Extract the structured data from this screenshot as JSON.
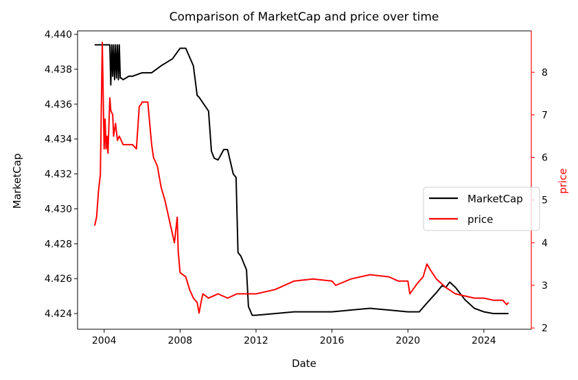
{
  "chart_data": {
    "type": "line",
    "title": "Comparison of MarketCap and price over time",
    "xlabel": "Date",
    "ylabel_left": "MarketCap",
    "ylabel_right": "price",
    "xlim": [
      2002.6,
      2026.5
    ],
    "ylim_left": [
      4.4231,
      4.4402
    ],
    "ylim_right": [
      1.97,
      8.97
    ],
    "x_ticks": [
      2004,
      2008,
      2012,
      2016,
      2020,
      2024
    ],
    "y_left_ticks": [
      "4.424",
      "4.426",
      "4.428",
      "4.430",
      "4.432",
      "4.434",
      "4.436",
      "4.438",
      "4.440"
    ],
    "y_right_ticks": [
      "2",
      "3",
      "4",
      "5",
      "6",
      "7",
      "8"
    ],
    "grid": false,
    "legend_position": "center-right",
    "colors": {
      "marketcap": "#000000",
      "price": "#ff0000",
      "right_axis": "#ff0000"
    },
    "series": [
      {
        "name": "MarketCap",
        "axis": "left",
        "x": [
          2003.5,
          2004.3,
          2004.35,
          2004.4,
          2004.45,
          2004.5,
          2004.55,
          2004.6,
          2004.65,
          2004.7,
          2004.75,
          2004.8,
          2004.85,
          2004.9,
          2005.0,
          2005.3,
          2005.5,
          2006.0,
          2006.5,
          2007.0,
          2007.3,
          2007.6,
          2008.0,
          2008.3,
          2008.7,
          2008.9,
          2009.0,
          2009.5,
          2009.65,
          2009.8,
          2010.0,
          2010.3,
          2010.5,
          2010.8,
          2010.95,
          2011.05,
          2011.2,
          2011.5,
          2011.6,
          2011.8,
          2012.0,
          2013.0,
          2014.0,
          2015.0,
          2016.0,
          2017.0,
          2018.0,
          2019.0,
          2020.0,
          2020.6,
          2021.0,
          2021.5,
          2021.8,
          2022.0,
          2022.2,
          2022.5,
          2023.0,
          2023.5,
          2024.0,
          2024.5,
          2025.0,
          2025.3
        ],
        "values": [
          4.4394,
          4.4394,
          4.4371,
          4.4394,
          4.4376,
          4.4394,
          4.4374,
          4.4394,
          4.4375,
          4.4394,
          4.4374,
          4.4394,
          4.4375,
          4.4375,
          4.4374,
          4.4376,
          4.4376,
          4.4378,
          4.4378,
          4.4382,
          4.4384,
          4.4386,
          4.4392,
          4.4392,
          4.4382,
          4.4365,
          4.4364,
          4.4356,
          4.4333,
          4.4329,
          4.4328,
          4.4334,
          4.4334,
          4.432,
          4.4318,
          4.4275,
          4.4273,
          4.4265,
          4.4244,
          4.4239,
          4.4239,
          4.424,
          4.4241,
          4.4241,
          4.4241,
          4.4242,
          4.4243,
          4.4242,
          4.4241,
          4.4241,
          4.4246,
          4.4252,
          4.4256,
          4.4255,
          4.4258,
          4.4255,
          4.4248,
          4.4243,
          4.4241,
          4.424,
          4.424,
          4.424
        ]
      },
      {
        "name": "price",
        "axis": "right",
        "x": [
          2003.5,
          2003.6,
          2003.7,
          2003.8,
          2003.9,
          2004.0,
          2004.05,
          2004.1,
          2004.15,
          2004.2,
          2004.3,
          2004.35,
          2004.45,
          2004.5,
          2004.6,
          2004.7,
          2004.8,
          2005.0,
          2005.2,
          2005.5,
          2005.7,
          2005.85,
          2005.95,
          2006.0,
          2006.3,
          2006.5,
          2006.6,
          2006.8,
          2007.0,
          2007.2,
          2007.5,
          2007.7,
          2007.85,
          2007.9,
          2008.0,
          2008.3,
          2008.5,
          2008.7,
          2008.9,
          2009.0,
          2009.1,
          2009.2,
          2009.5,
          2010.0,
          2010.5,
          2011.0,
          2011.5,
          2012.0,
          2013.0,
          2014.0,
          2015.0,
          2016.0,
          2016.2,
          2017.0,
          2018.0,
          2019.0,
          2019.5,
          2020.0,
          2020.1,
          2020.5,
          2020.8,
          2021.0,
          2021.2,
          2021.5,
          2022.0,
          2022.5,
          2023.0,
          2023.5,
          2024.0,
          2024.5,
          2025.0,
          2025.2,
          2025.3
        ],
        "values": [
          4.4,
          4.6,
          5.2,
          5.6,
          8.7,
          6.2,
          6.9,
          6.2,
          6.5,
          6.1,
          7.4,
          7.1,
          7.0,
          6.5,
          6.8,
          6.4,
          6.5,
          6.3,
          6.3,
          6.3,
          6.2,
          7.2,
          7.25,
          7.3,
          7.3,
          6.3,
          6.0,
          5.8,
          5.3,
          5.0,
          4.4,
          4.0,
          4.6,
          3.8,
          3.3,
          3.2,
          2.9,
          2.7,
          2.6,
          2.35,
          2.6,
          2.8,
          2.7,
          2.8,
          2.7,
          2.8,
          2.8,
          2.8,
          2.9,
          3.1,
          3.15,
          3.1,
          3.0,
          3.15,
          3.25,
          3.2,
          3.1,
          3.1,
          2.8,
          3.05,
          3.2,
          3.5,
          3.35,
          3.15,
          2.95,
          2.8,
          2.75,
          2.7,
          2.7,
          2.65,
          2.65,
          2.55,
          2.6
        ]
      }
    ]
  }
}
